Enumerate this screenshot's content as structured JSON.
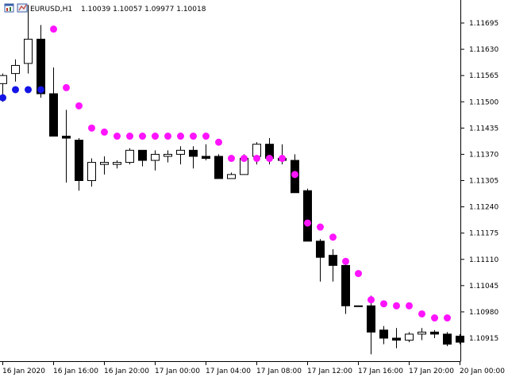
{
  "header": {
    "symbol_timeframe": "EURUSD,H1",
    "ohlc": "1.10039 1.10057 1.09977 1.10018"
  },
  "colors": {
    "background": "#ffffff",
    "axis": "#000000",
    "bull_body": "#ffffff",
    "bear_body": "#000000",
    "candle_outline": "#000000",
    "sar_below": "#1414e6",
    "sar_above": "#ff14ff"
  },
  "icons": [
    "chart-window-icon",
    "expert-indicator-icon"
  ],
  "chart_data": {
    "type": "candlestick",
    "title": "EURUSD,H1",
    "ylim": [
      1.1088,
      1.1174
    ],
    "grid": false,
    "y_ticks": [
      "1.11695",
      "1.11630",
      "1.11565",
      "1.11500",
      "1.11435",
      "1.11370",
      "1.11305",
      "1.11240",
      "1.11175",
      "1.11110",
      "1.11045",
      "1.10980",
      "1.10915"
    ],
    "x_ticks": [
      "16 Jan 2020",
      "16 Jan 16:00",
      "16 Jan 20:00",
      "17 Jan 00:00",
      "17 Jan 04:00",
      "17 Jan 08:00",
      "17 Jan 12:00",
      "17 Jan 16:00",
      "17 Jan 20:00",
      "20 Jan 00:00"
    ],
    "candles": [
      {
        "o": 1.11545,
        "h": 1.1157,
        "l": 1.115,
        "c": 1.11565
      },
      {
        "o": 1.1157,
        "h": 1.11605,
        "l": 1.1155,
        "c": 1.1159
      },
      {
        "o": 1.11595,
        "h": 1.1174,
        "l": 1.1157,
        "c": 1.11655
      },
      {
        "o": 1.11655,
        "h": 1.1169,
        "l": 1.1151,
        "c": 1.1152
      },
      {
        "o": 1.1152,
        "h": 1.11585,
        "l": 1.11415,
        "c": 1.11415
      },
      {
        "o": 1.11415,
        "h": 1.1148,
        "l": 1.113,
        "c": 1.1141
      },
      {
        "o": 1.11405,
        "h": 1.1141,
        "l": 1.1128,
        "c": 1.11305
      },
      {
        "o": 1.11305,
        "h": 1.1136,
        "l": 1.1129,
        "c": 1.1135
      },
      {
        "o": 1.11345,
        "h": 1.11365,
        "l": 1.1132,
        "c": 1.1135
      },
      {
        "o": 1.11345,
        "h": 1.11355,
        "l": 1.11335,
        "c": 1.1135
      },
      {
        "o": 1.1135,
        "h": 1.11385,
        "l": 1.11345,
        "c": 1.1138
      },
      {
        "o": 1.1138,
        "h": 1.1138,
        "l": 1.1134,
        "c": 1.11355
      },
      {
        "o": 1.11355,
        "h": 1.1138,
        "l": 1.1133,
        "c": 1.1137
      },
      {
        "o": 1.11365,
        "h": 1.1138,
        "l": 1.1135,
        "c": 1.1137
      },
      {
        "o": 1.1137,
        "h": 1.1139,
        "l": 1.11345,
        "c": 1.1138
      },
      {
        "o": 1.1138,
        "h": 1.1139,
        "l": 1.11335,
        "c": 1.11365
      },
      {
        "o": 1.11365,
        "h": 1.11395,
        "l": 1.11355,
        "c": 1.1136
      },
      {
        "o": 1.11365,
        "h": 1.1137,
        "l": 1.1131,
        "c": 1.1131
      },
      {
        "o": 1.1131,
        "h": 1.11325,
        "l": 1.1131,
        "c": 1.1132
      },
      {
        "o": 1.1132,
        "h": 1.1137,
        "l": 1.1132,
        "c": 1.1136
      },
      {
        "o": 1.11365,
        "h": 1.114,
        "l": 1.11345,
        "c": 1.11395
      },
      {
        "o": 1.11395,
        "h": 1.1141,
        "l": 1.11345,
        "c": 1.1136
      },
      {
        "o": 1.1136,
        "h": 1.11395,
        "l": 1.11345,
        "c": 1.11355
      },
      {
        "o": 1.11355,
        "h": 1.1137,
        "l": 1.11275,
        "c": 1.11275
      },
      {
        "o": 1.1128,
        "h": 1.11285,
        "l": 1.11155,
        "c": 1.11155
      },
      {
        "o": 1.11155,
        "h": 1.1116,
        "l": 1.11055,
        "c": 1.11115
      },
      {
        "o": 1.1112,
        "h": 1.11135,
        "l": 1.11055,
        "c": 1.11095
      },
      {
        "o": 1.11095,
        "h": 1.111,
        "l": 1.10975,
        "c": 1.10995
      },
      {
        "o": 1.10995,
        "h": 1.1099,
        "l": 1.1099,
        "c": 1.10995
      },
      {
        "o": 1.10995,
        "h": 1.1102,
        "l": 1.10875,
        "c": 1.1093
      },
      {
        "o": 1.10935,
        "h": 1.10945,
        "l": 1.109,
        "c": 1.10915
      },
      {
        "o": 1.10915,
        "h": 1.1094,
        "l": 1.1089,
        "c": 1.1091
      },
      {
        "o": 1.1091,
        "h": 1.1093,
        "l": 1.10905,
        "c": 1.10925
      },
      {
        "o": 1.10925,
        "h": 1.1094,
        "l": 1.1091,
        "c": 1.1093
      },
      {
        "o": 1.1093,
        "h": 1.10935,
        "l": 1.10915,
        "c": 1.10925
      },
      {
        "o": 1.10925,
        "h": 1.1093,
        "l": 1.10895,
        "c": 1.109
      },
      {
        "o": 1.1092,
        "h": 1.10925,
        "l": 1.109,
        "c": 1.10905
      }
    ],
    "series": [
      {
        "values": [
          {
            "i": 0,
            "v": 1.1151,
            "above": false
          },
          {
            "i": 1,
            "v": 1.1153,
            "above": false
          },
          {
            "i": 2,
            "v": 1.1153,
            "above": false
          },
          {
            "i": 3,
            "v": 1.1153,
            "above": false
          },
          {
            "i": 4,
            "v": 1.1168,
            "above": true
          },
          {
            "i": 5,
            "v": 1.11535,
            "above": true
          },
          {
            "i": 6,
            "v": 1.1149,
            "above": true
          },
          {
            "i": 7,
            "v": 1.11435,
            "above": true
          },
          {
            "i": 8,
            "v": 1.11425,
            "above": true
          },
          {
            "i": 9,
            "v": 1.11415,
            "above": true
          },
          {
            "i": 10,
            "v": 1.11415,
            "above": true
          },
          {
            "i": 11,
            "v": 1.11415,
            "above": true
          },
          {
            "i": 12,
            "v": 1.11415,
            "above": true
          },
          {
            "i": 13,
            "v": 1.11415,
            "above": true
          },
          {
            "i": 14,
            "v": 1.11415,
            "above": true
          },
          {
            "i": 15,
            "v": 1.11415,
            "above": true
          },
          {
            "i": 16,
            "v": 1.11415,
            "above": true
          },
          {
            "i": 17,
            "v": 1.114,
            "above": true
          },
          {
            "i": 18,
            "v": 1.1136,
            "above": true
          },
          {
            "i": 19,
            "v": 1.1136,
            "above": true
          },
          {
            "i": 20,
            "v": 1.1136,
            "above": true
          },
          {
            "i": 21,
            "v": 1.1136,
            "above": true
          },
          {
            "i": 22,
            "v": 1.1136,
            "above": true
          },
          {
            "i": 23,
            "v": 1.1132,
            "above": true
          },
          {
            "i": 24,
            "v": 1.112,
            "above": true
          },
          {
            "i": 25,
            "v": 1.1119,
            "above": true
          },
          {
            "i": 26,
            "v": 1.11165,
            "above": true
          },
          {
            "i": 27,
            "v": 1.11105,
            "above": true
          },
          {
            "i": 28,
            "v": 1.11075,
            "above": true
          },
          {
            "i": 29,
            "v": 1.1101,
            "above": true
          },
          {
            "i": 30,
            "v": 1.11,
            "above": true
          },
          {
            "i": 31,
            "v": 1.10995,
            "above": true
          },
          {
            "i": 32,
            "v": 1.10995,
            "above": true
          },
          {
            "i": 33,
            "v": 1.10975,
            "above": true
          },
          {
            "i": 34,
            "v": 1.10965,
            "above": true
          },
          {
            "i": 35,
            "v": 1.10965,
            "above": true
          }
        ]
      }
    ]
  }
}
